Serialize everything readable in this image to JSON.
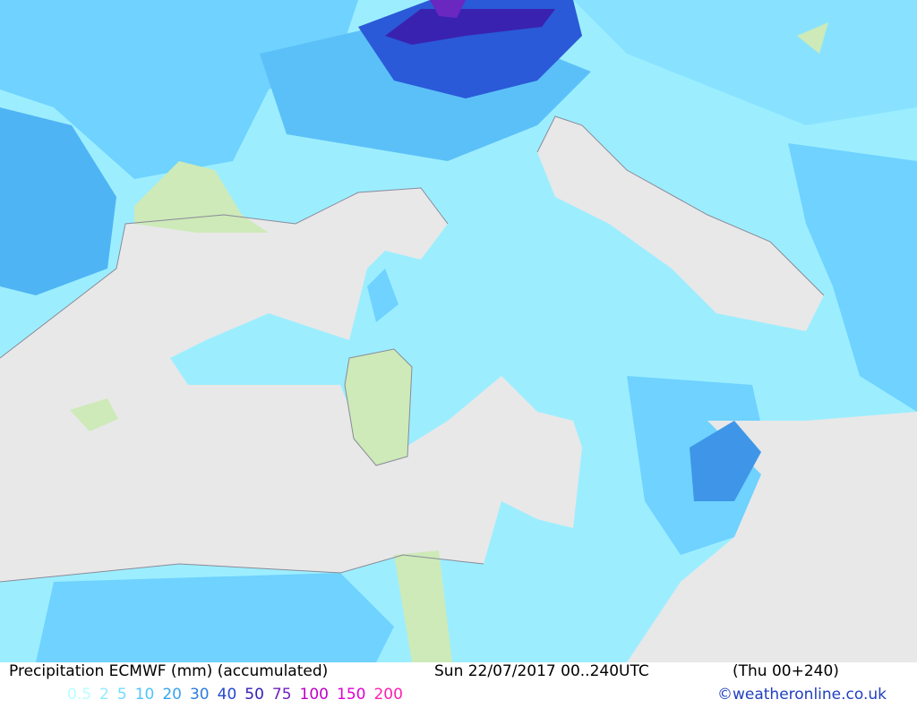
{
  "footer": {
    "title": "Precipitation ECMWF (mm) (accumulated)",
    "run": "Sun 22/07/2017 00..240UTC",
    "valid": "(Thu 00+240)",
    "legend": [
      {
        "value": 0.5,
        "color": "#b8ffff"
      },
      {
        "value": 2,
        "color": "#90ecff"
      },
      {
        "value": 5,
        "color": "#70dcff"
      },
      {
        "value": 10,
        "color": "#50c4ff"
      },
      {
        "value": 20,
        "color": "#38a4f0"
      },
      {
        "value": 30,
        "color": "#2c7ce0"
      },
      {
        "value": 40,
        "color": "#2448d0"
      },
      {
        "value": 50,
        "color": "#3420b4"
      },
      {
        "value": 75,
        "color": "#7020c0"
      },
      {
        "value": 100,
        "color": "#c000c8"
      },
      {
        "value": 150,
        "color": "#e000d0"
      },
      {
        "value": 200,
        "color": "#ff20b0"
      }
    ],
    "credit": "©weatheronline.co.uk"
  }
}
